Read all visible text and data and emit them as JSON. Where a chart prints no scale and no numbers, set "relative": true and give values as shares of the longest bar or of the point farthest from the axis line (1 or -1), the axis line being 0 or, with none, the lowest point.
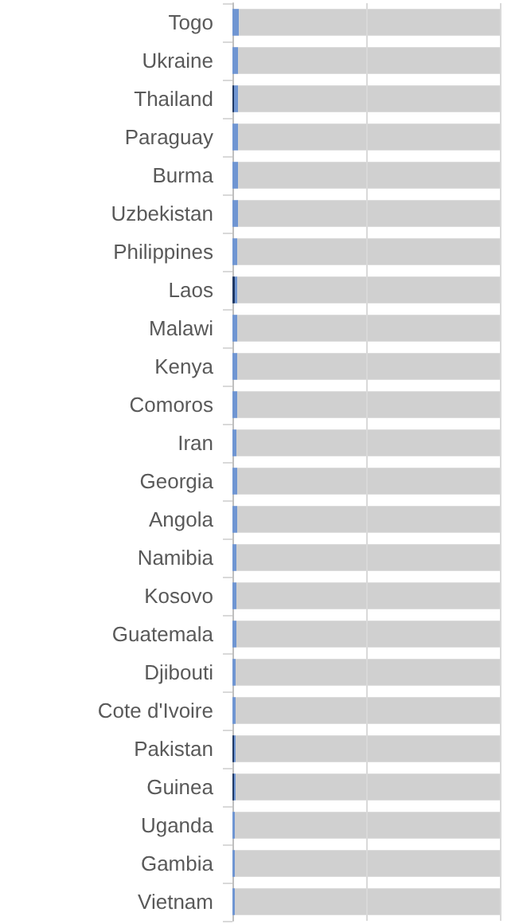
{
  "chart_data": {
    "type": "bar",
    "orientation": "horizontal",
    "stacked": true,
    "relative": true,
    "ref_lines": [
      {
        "axis": "x",
        "value": 0.5,
        "color": "#d9d9d9"
      },
      {
        "axis": "x",
        "value": 1,
        "color": "#d9d9d9"
      }
    ],
    "categories": [
      "Togo",
      "Ukraine",
      "Thailand",
      "Paraguay",
      "Burma",
      "Uzbekistan",
      "Philippines",
      "Laos",
      "Malawi",
      "Kenya",
      "Comoros",
      "Iran",
      "Georgia",
      "Angola",
      "Namibia",
      "Kosovo",
      "Guatemala",
      "Djibouti",
      "Cote d'Ivoire",
      "Pakistan",
      "Guinea",
      "Uganda",
      "Gambia",
      "Vietnam"
    ],
    "series": [
      {
        "color": "#1f3864",
        "values": [
          0,
          0,
          0.006,
          0,
          0,
          0,
          0,
          0.009,
          0,
          0,
          0,
          0,
          0,
          0,
          0,
          0,
          0,
          0,
          0,
          0.006,
          0.006,
          0,
          0,
          0
        ]
      },
      {
        "color": "#6f95d2",
        "values": [
          0.024,
          0.021,
          0.015,
          0.021,
          0.021,
          0.021,
          0.018,
          0.009,
          0.018,
          0.018,
          0.018,
          0.015,
          0.018,
          0.018,
          0.015,
          0.015,
          0.015,
          0.012,
          0.012,
          0.006,
          0.006,
          0.009,
          0.009,
          0.009
        ]
      },
      {
        "color": "#d0d0d0",
        "values": [
          0.976,
          0.979,
          0.979,
          0.979,
          0.979,
          0.979,
          0.982,
          0.982,
          0.982,
          0.982,
          0.982,
          0.985,
          0.982,
          0.982,
          0.985,
          0.985,
          0.985,
          0.988,
          0.988,
          0.988,
          0.988,
          0.991,
          0.991,
          0.991
        ]
      }
    ]
  }
}
